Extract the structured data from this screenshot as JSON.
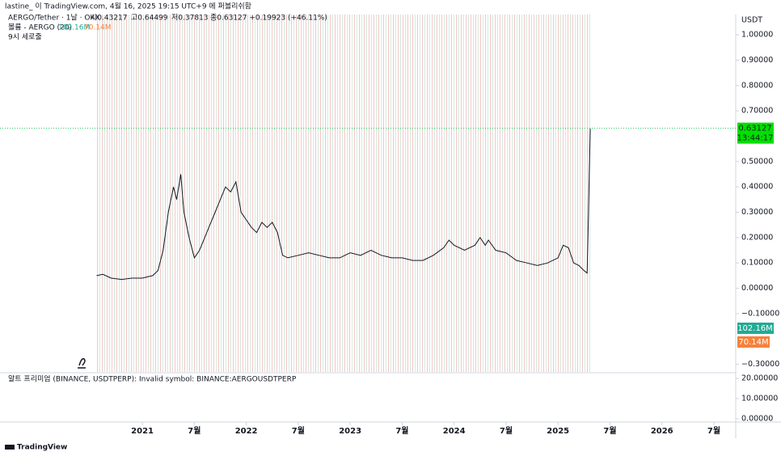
{
  "header": "lastine_ 이 TradingView.com, 4월 16, 2025 19:15 UTC+9 에 퍼블리쉬함",
  "footer": "TradingView",
  "chart_data": [
    {
      "type": "line",
      "legend": {
        "symbol": "AERGO/Tether · 1날 · OKX",
        "open": "시0.43217",
        "high": "고0.64499",
        "low": "저0.37813",
        "close": "종0.63127 +0.19923 (+46.11%)",
        "volume_title": "볼륨 - AERGO (20)",
        "volume_a": "102.16M",
        "volume_b": "70.14M",
        "session": "9시 세로줄"
      },
      "axis_unit": "USDT",
      "last_price": {
        "value": 0.63127,
        "label": "0.63127"
      },
      "countdown": "13:44:17",
      "color": "#131722",
      "x": [
        2020.56,
        2020.62,
        2020.7,
        2020.8,
        2020.9,
        2021.0,
        2021.05,
        2021.1,
        2021.15,
        2021.2,
        2021.25,
        2021.3,
        2021.33,
        2021.37,
        2021.4,
        2021.45,
        2021.5,
        2021.55,
        2021.6,
        2021.65,
        2021.7,
        2021.75,
        2021.8,
        2021.85,
        2021.9,
        2021.95,
        2022.0,
        2022.05,
        2022.1,
        2022.15,
        2022.2,
        2022.25,
        2022.3,
        2022.35,
        2022.4,
        2022.5,
        2022.6,
        2022.7,
        2022.8,
        2022.9,
        2023.0,
        2023.1,
        2023.2,
        2023.3,
        2023.4,
        2023.5,
        2023.6,
        2023.7,
        2023.8,
        2023.9,
        2023.95,
        2024.0,
        2024.1,
        2024.2,
        2024.25,
        2024.3,
        2024.33,
        2024.4,
        2024.5,
        2024.6,
        2024.7,
        2024.8,
        2024.9,
        2025.0,
        2025.05,
        2025.1,
        2025.15,
        2025.2,
        2025.25,
        2025.28,
        2025.29,
        2025.3,
        2025.31
      ],
      "values": [
        0.05,
        0.055,
        0.04,
        0.035,
        0.04,
        0.04,
        0.045,
        0.05,
        0.07,
        0.15,
        0.3,
        0.4,
        0.35,
        0.45,
        0.3,
        0.2,
        0.12,
        0.15,
        0.2,
        0.25,
        0.3,
        0.35,
        0.4,
        0.38,
        0.42,
        0.3,
        0.27,
        0.24,
        0.22,
        0.26,
        0.24,
        0.26,
        0.22,
        0.13,
        0.12,
        0.13,
        0.14,
        0.13,
        0.12,
        0.12,
        0.14,
        0.13,
        0.15,
        0.13,
        0.12,
        0.12,
        0.11,
        0.11,
        0.13,
        0.16,
        0.19,
        0.17,
        0.15,
        0.17,
        0.2,
        0.17,
        0.19,
        0.15,
        0.14,
        0.11,
        0.1,
        0.09,
        0.1,
        0.12,
        0.17,
        0.16,
        0.1,
        0.09,
        0.07,
        0.06,
        0.24,
        0.45,
        0.63
      ],
      "xlim": [
        2019.63,
        2026.71
      ],
      "xticks": [
        {
          "value": 2021,
          "label": "2021"
        },
        {
          "value": 2021.5,
          "label": "7월"
        },
        {
          "value": 2022,
          "label": "2022"
        },
        {
          "value": 2022.5,
          "label": "7월"
        },
        {
          "value": 2023,
          "label": "2023"
        },
        {
          "value": 2023.5,
          "label": "7월"
        },
        {
          "value": 2024,
          "label": "2024"
        },
        {
          "value": 2024.5,
          "label": "7월"
        },
        {
          "value": 2025,
          "label": "2025"
        },
        {
          "value": 2025.5,
          "label": "7월"
        },
        {
          "value": 2026,
          "label": "2026"
        },
        {
          "value": 2026.5,
          "label": "7월"
        }
      ],
      "ylim": [
        -0.33,
        1.08
      ],
      "yticks": [
        {
          "value": -0.3,
          "label": "−0.30000"
        },
        {
          "value": -0.1,
          "label": "−0.10000"
        },
        {
          "value": 0,
          "label": "0.00000"
        },
        {
          "value": 0.1,
          "label": "0.10000"
        },
        {
          "value": 0.2,
          "label": "0.20000"
        },
        {
          "value": 0.3,
          "label": "0.30000"
        },
        {
          "value": 0.4,
          "label": "0.40000"
        },
        {
          "value": 0.5,
          "label": "0.50000"
        },
        {
          "value": 0.7,
          "label": "0.70000"
        },
        {
          "value": 0.8,
          "label": "0.80000"
        },
        {
          "value": 0.9,
          "label": "0.90000"
        },
        {
          "value": 1.0,
          "label": "1.00000"
        }
      ]
    },
    {
      "type": "line",
      "title": "알트 프리미엄 (BINANCE, USDTPERP): Invalid symbol: BINANCE:AERGOUSDTPERP",
      "ylim": [
        -1.6,
        22.4
      ],
      "yticks": [
        {
          "value": 0,
          "label": "0.00000"
        },
        {
          "value": 10,
          "label": "10.00000"
        },
        {
          "value": 20,
          "label": "20.00000"
        }
      ]
    }
  ]
}
